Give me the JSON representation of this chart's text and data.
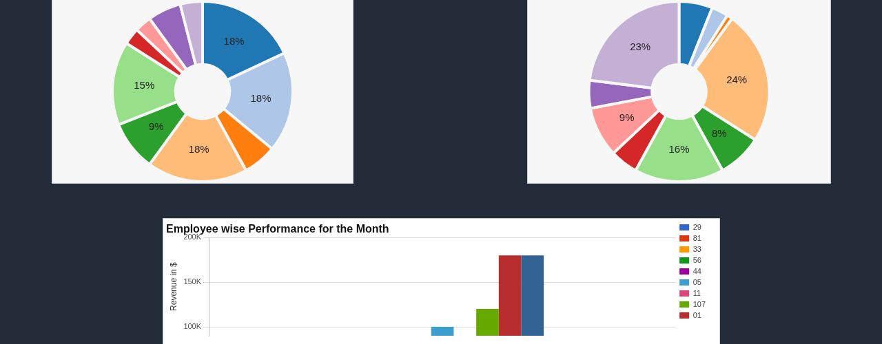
{
  "chart_data": [
    {
      "type": "donut",
      "categories": [
        null,
        null,
        null,
        null,
        null,
        null,
        null,
        null,
        null,
        null
      ],
      "values": [
        18,
        18,
        6,
        18,
        9,
        15,
        3,
        3,
        6,
        4
      ],
      "colors": [
        "#1f77b4",
        "#aec7e8",
        "#ff7f0e",
        "#ffbb78",
        "#2ca02c",
        "#98df8a",
        "#d62728",
        "#ff9896",
        "#9467bd",
        "#c5b0d5"
      ],
      "value_labels": [
        "18%",
        "18%",
        null,
        "18%",
        "9%",
        "15%",
        null,
        null,
        null,
        null
      ]
    },
    {
      "type": "donut",
      "categories": [
        null,
        null,
        null,
        null,
        null,
        null,
        null,
        null,
        null,
        null
      ],
      "values": [
        6,
        3,
        1,
        24,
        8,
        16,
        5,
        9,
        5,
        23
      ],
      "colors": [
        "#1f77b4",
        "#aec7e8",
        "#ff7f0e",
        "#ffbb78",
        "#2ca02c",
        "#98df8a",
        "#d62728",
        "#ff9896",
        "#9467bd",
        "#c5b0d5"
      ],
      "value_labels": [
        null,
        null,
        null,
        "24%",
        "8%",
        "16%",
        null,
        "9%",
        null,
        "23%"
      ]
    },
    {
      "type": "bar",
      "title": "Employee wise Performance for the Month",
      "ylabel": "Revenue in $",
      "categories": [
        null
      ],
      "series": [
        {
          "name": "29",
          "color": "#3366cc",
          "values": [
            null
          ]
        },
        {
          "name": "81",
          "color": "#dc3912",
          "values": [
            null
          ]
        },
        {
          "name": "33",
          "color": "#ff9900",
          "values": [
            null
          ]
        },
        {
          "name": "56",
          "color": "#109618",
          "values": [
            null
          ]
        },
        {
          "name": "44",
          "color": "#990099",
          "values": [
            null
          ]
        },
        {
          "name": "05",
          "color": "#3b9ecc",
          "values": [
            100000
          ]
        },
        {
          "name": "11",
          "color": "#dd4477",
          "values": [
            null
          ]
        },
        {
          "name": "107",
          "color": "#66aa00",
          "values": [
            120000
          ]
        },
        {
          "name": "01",
          "color": "#b82e2e",
          "values": [
            180000
          ]
        },
        {
          "color": "#316395",
          "values": [
            180000
          ]
        },
        {
          "color": "#994499",
          "values": [
            null
          ]
        }
      ],
      "ylim": [
        90000,
        200000
      ],
      "yticks": [
        {
          "value": 100000,
          "label": "100K"
        },
        {
          "value": 150000,
          "label": "150K"
        },
        {
          "value": 200000,
          "label": "200K"
        }
      ],
      "grid": "y",
      "legend": "top right",
      "tick_labels": "y"
    }
  ]
}
